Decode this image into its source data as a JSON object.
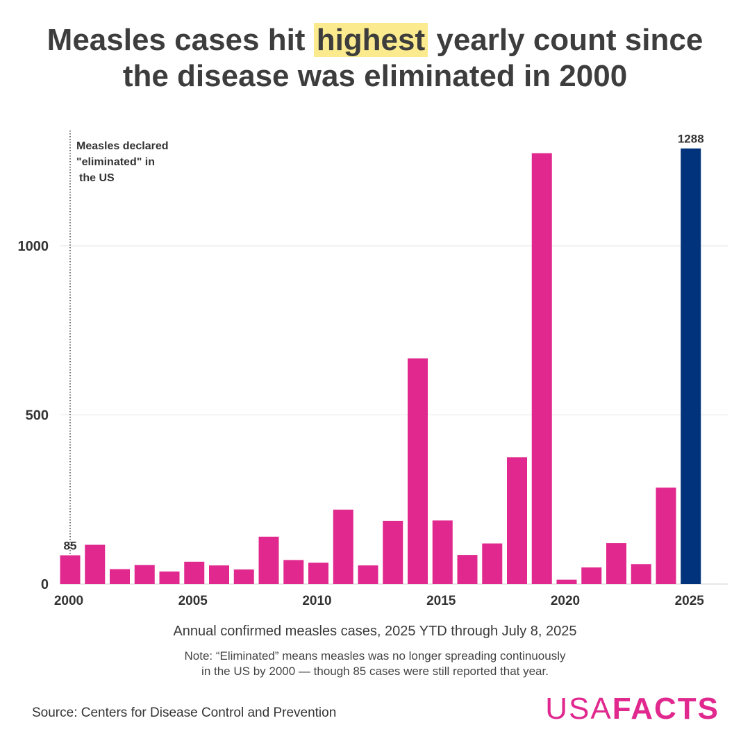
{
  "title": {
    "part1": "Measles cases hit ",
    "highlight": "highest",
    "part2": " yearly count since",
    "line2": "the disease was eliminated in 2000"
  },
  "subtitle": "Annual confirmed measles cases, 2025 YTD through July 8, 2025",
  "note": {
    "line1": "Note: “Eliminated” means measles was no longer spreading continuously",
    "line2": "in the US by 2000 — though 85 cases were still reported that year."
  },
  "source": "Source: Centers for Disease Control and Prevention",
  "logo": {
    "part1": "USA",
    "part2": "FACTS"
  },
  "colors": {
    "bar": "#e0288e",
    "highlight_bar": "#00337c",
    "title_highlight": "#fbeb8e"
  },
  "chart_data": {
    "type": "bar",
    "x": [
      2000,
      2001,
      2002,
      2003,
      2004,
      2005,
      2006,
      2007,
      2008,
      2009,
      2010,
      2011,
      2012,
      2013,
      2014,
      2015,
      2016,
      2017,
      2018,
      2019,
      2020,
      2021,
      2022,
      2023,
      2024,
      2025
    ],
    "values": [
      85,
      116,
      44,
      56,
      37,
      66,
      55,
      43,
      140,
      71,
      63,
      220,
      55,
      187,
      667,
      188,
      86,
      120,
      375,
      1274,
      13,
      49,
      121,
      59,
      285,
      1288
    ],
    "y_ticks": [
      0,
      500,
      1000
    ],
    "x_ticks": [
      2000,
      2005,
      2010,
      2015,
      2020,
      2025
    ],
    "ylim": [
      0,
      1300
    ],
    "grid": "horizontal",
    "data_labels": [
      {
        "x": 2000,
        "text": "85"
      },
      {
        "x": 2025,
        "text": "1288"
      }
    ],
    "highlight": 2025,
    "annotation": {
      "x": 2000,
      "lines": [
        "Measles declared",
        "\"eliminated\" in",
        "the US"
      ]
    }
  }
}
